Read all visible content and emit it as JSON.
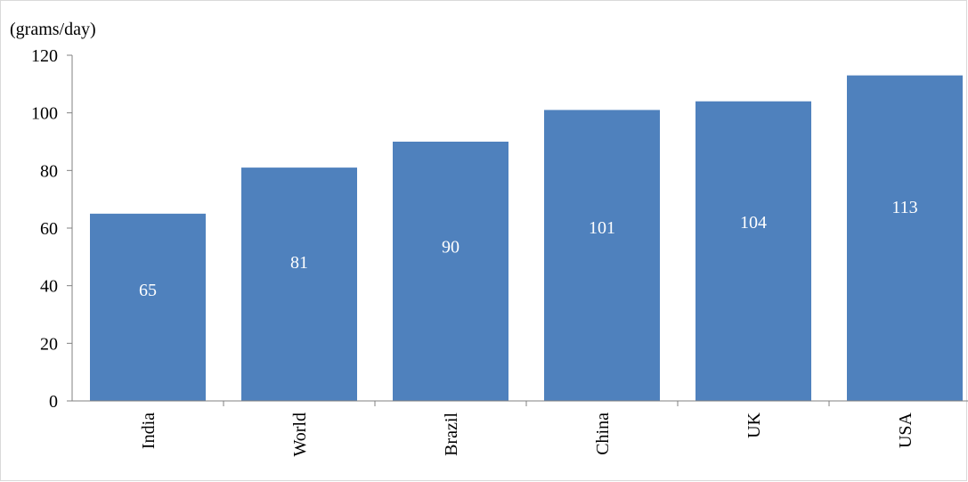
{
  "chart_data": {
    "type": "bar",
    "unit_label": "(grams/day)",
    "categories": [
      "India",
      "World",
      "Brazil",
      "China",
      "UK",
      "USA"
    ],
    "values": [
      65,
      81,
      90,
      101,
      104,
      113
    ],
    "data_labels": [
      "65",
      "81",
      "90",
      "101",
      "104",
      "113"
    ],
    "ylim": [
      0,
      120
    ],
    "y_ticks": [
      "0",
      "20",
      "40",
      "60",
      "80",
      "100",
      "120"
    ],
    "grid": false,
    "legend": "none",
    "bar_color": "#4f81bd",
    "data_label_color": "#ffffff",
    "axis_color": "#808080",
    "text_color": "#000000"
  }
}
